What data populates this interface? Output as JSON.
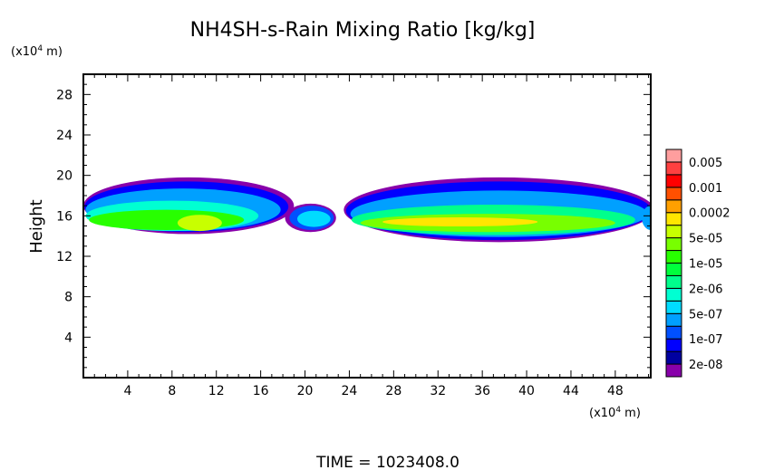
{
  "chart_data": {
    "type": "heatmap",
    "title": "NH4SH-s-Rain Mixing Ratio [kg/kg]",
    "xlabel": "",
    "x_unit": "(x10^4 m)",
    "ylabel": "Height",
    "y_unit": "(x10^4 m)",
    "xlim": [
      0,
      51.2
    ],
    "ylim": [
      0,
      30
    ],
    "x_ticks": [
      4,
      8,
      12,
      16,
      20,
      24,
      28,
      32,
      36,
      40,
      44,
      48
    ],
    "y_ticks": [
      4,
      8,
      12,
      16,
      20,
      24,
      28
    ],
    "grid": false,
    "footer": "TIME = 1023408.0",
    "colorbar": {
      "position": "right",
      "colors": [
        "#8800aa",
        "#0000a0",
        "#0000ff",
        "#0050ff",
        "#00a0ff",
        "#00dcff",
        "#00ffd2",
        "#00ff8c",
        "#00ff3c",
        "#28ff00",
        "#78ff00",
        "#c8ff00",
        "#ffe600",
        "#ffa000",
        "#ff5000",
        "#ff0000",
        "#ff4040",
        "#ff9e9e"
      ],
      "labels": [
        "2e-08",
        "1e-07",
        "5e-07",
        "2e-06",
        "1e-05",
        "5e-05",
        "0.0002",
        "0.001",
        "0.005"
      ]
    },
    "regions": [
      {
        "cx": 9.5,
        "cz": 17.0,
        "rx": 9.5,
        "rz": 2.8,
        "level": 0
      },
      {
        "cx": 9.3,
        "cz": 16.9,
        "rx": 9.2,
        "rz": 2.5,
        "level": 2
      },
      {
        "cx": 9.0,
        "cz": 16.6,
        "rx": 8.8,
        "rz": 2.1,
        "level": 4
      },
      {
        "cx": 8.0,
        "cz": 16.0,
        "rx": 7.8,
        "rz": 1.5,
        "level": 6
      },
      {
        "cx": 7.5,
        "cz": 15.6,
        "rx": 7.0,
        "rz": 1.0,
        "level": 9
      },
      {
        "cx": 10.5,
        "cz": 15.3,
        "rx": 2.0,
        "rz": 0.8,
        "level": 11
      },
      {
        "cx": 20.5,
        "cz": 15.8,
        "rx": 2.3,
        "rz": 1.4,
        "level": 0
      },
      {
        "cx": 20.6,
        "cz": 15.8,
        "rx": 2.0,
        "rz": 1.2,
        "level": 3
      },
      {
        "cx": 20.8,
        "cz": 15.7,
        "rx": 1.5,
        "rz": 0.8,
        "level": 5
      },
      {
        "cx": 37.5,
        "cz": 16.6,
        "rx": 14.0,
        "rz": 3.2,
        "level": 0
      },
      {
        "cx": 37.5,
        "cz": 16.5,
        "rx": 13.8,
        "rz": 2.9,
        "level": 2
      },
      {
        "cx": 37.5,
        "cz": 16.2,
        "rx": 13.4,
        "rz": 2.3,
        "level": 4
      },
      {
        "cx": 37.0,
        "cz": 15.6,
        "rx": 12.8,
        "rz": 1.5,
        "level": 7
      },
      {
        "cx": 36.5,
        "cz": 15.3,
        "rx": 11.5,
        "rz": 0.9,
        "level": 10
      },
      {
        "cx": 34.0,
        "cz": 15.4,
        "rx": 7.0,
        "rz": 0.45,
        "level": 12
      },
      {
        "cx": 51.2,
        "cz": 15.8,
        "rx": 0.8,
        "rz": 1.2,
        "level": 4
      }
    ]
  }
}
